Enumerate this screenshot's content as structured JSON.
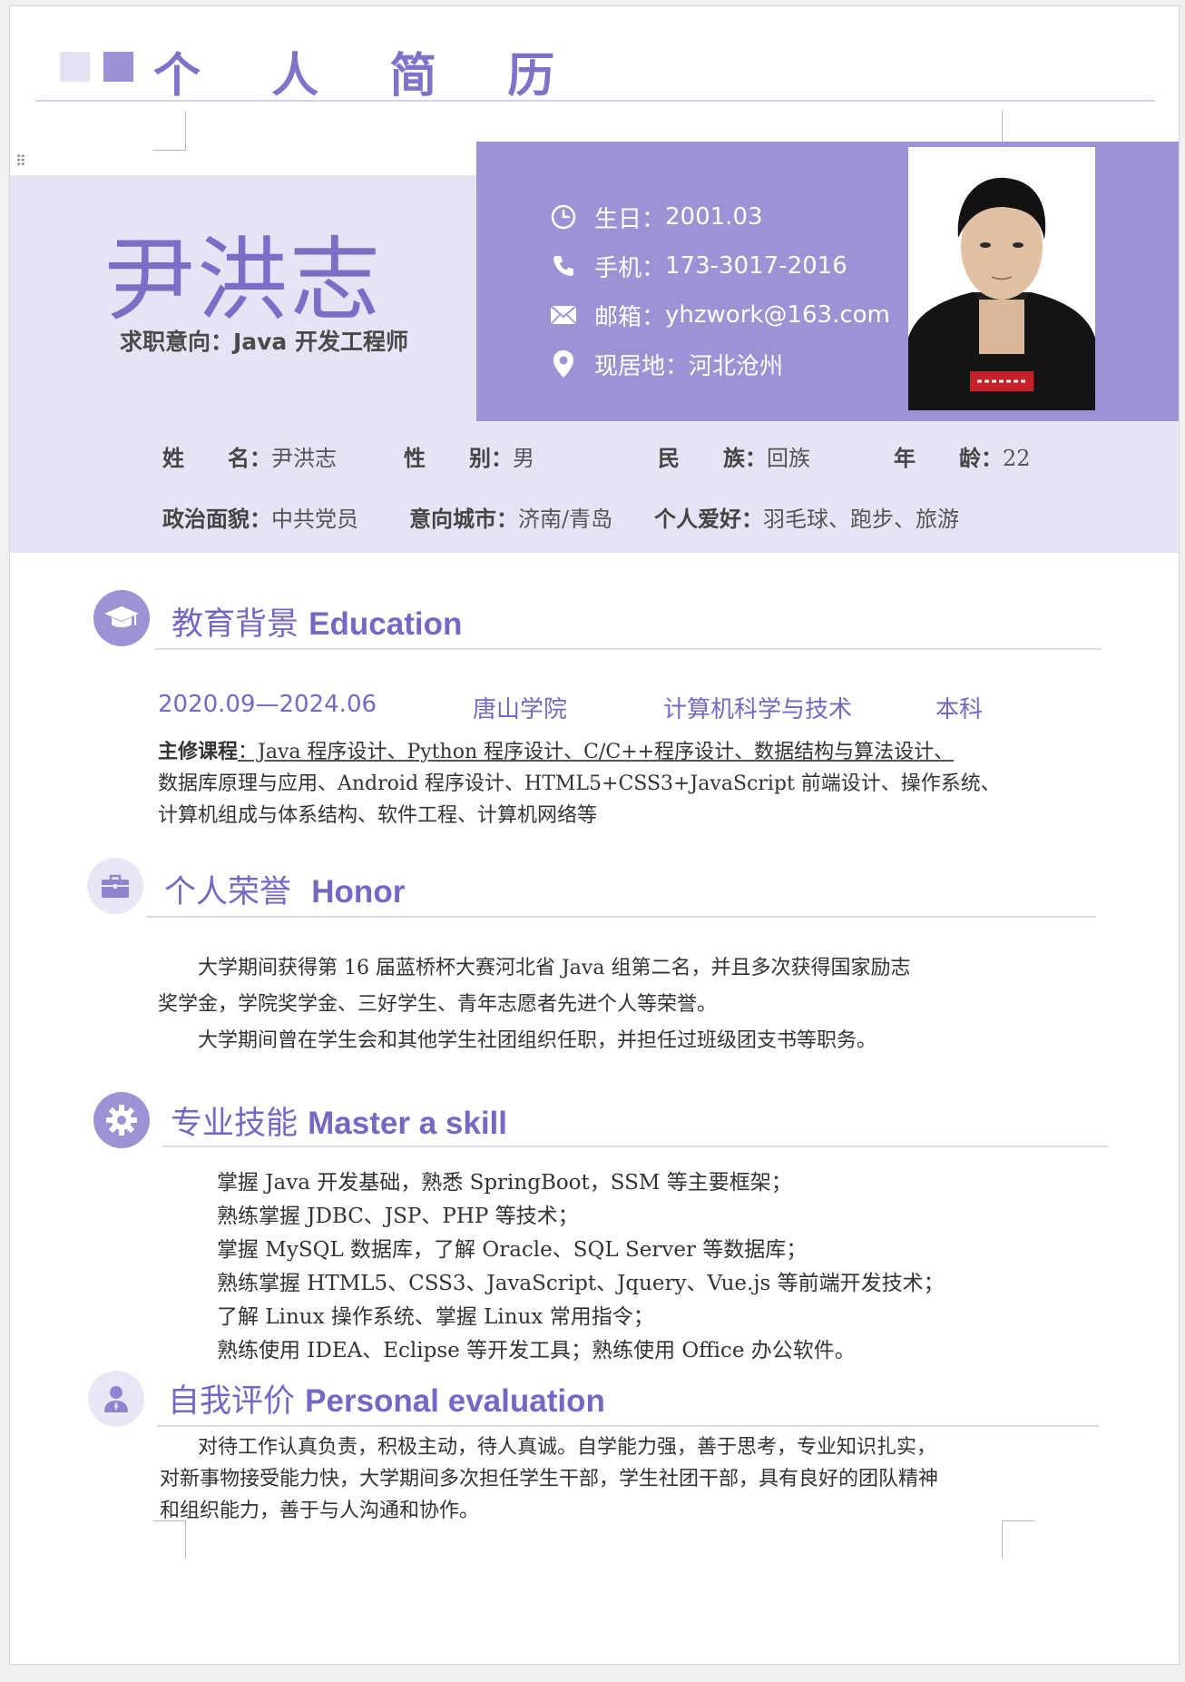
{
  "header": {
    "title": "个 人 简 历"
  },
  "profile": {
    "name": "尹洪志",
    "job_intent": "求职意向：Java 开发工程师"
  },
  "contact": [
    {
      "icon": "clock-icon",
      "label": "生日：",
      "value": "2001.03"
    },
    {
      "icon": "phone-icon",
      "label": "手机：",
      "value": "173-3017-2016"
    },
    {
      "icon": "mail-icon",
      "label": "邮箱：",
      "value": "yhzwork@163.com"
    },
    {
      "icon": "location-pin-icon",
      "label": "现居地：",
      "value": "河北沧州"
    }
  ],
  "basic_info": {
    "row1": [
      {
        "label": "姓　　名：",
        "value": "尹洪志"
      },
      {
        "label": "性　　别：",
        "value": "男"
      },
      {
        "label": "民　　族：",
        "value": "回族"
      },
      {
        "label": "年　　龄：",
        "value": "22"
      }
    ],
    "row2": [
      {
        "label": "政治面貌：",
        "value": "中共党员"
      },
      {
        "label": "意向城市：",
        "value": "济南/青岛"
      },
      {
        "label": "个人爱好：",
        "value": "羽毛球、跑步、旅游"
      }
    ]
  },
  "education": {
    "title_cn": "教育背景",
    "title_en": "Education",
    "period": "2020.09—2024.06",
    "school": "唐山学院",
    "major": "计算机科学与技术",
    "degree": "本科",
    "courses_label": "主修课程",
    "courses_line1": "：Java 程序设计、Python 程序设计、C/C++程序设计、数据结构与算法设计、",
    "courses_line2": "数据库原理与应用、Android 程序设计、HTML5+CSS3+JavaScript 前端设计、操作系统、",
    "courses_line3": "计算机组成与体系结构、软件工程、计算机网络等"
  },
  "honor": {
    "title_cn": "个人荣誉",
    "title_en": "Honor",
    "p1_line1": "大学期间获得第 16 届蓝桥杯大赛河北省 Java 组第二名，并且多次获得国家励志",
    "p1_line2": "奖学金，学院奖学金、三好学生、青年志愿者先进个人等荣誉。",
    "p2": "大学期间曾在学生会和其他学生社团组织任职，并担任过班级团支书等职务。"
  },
  "skills": {
    "title_cn": "专业技能",
    "title_en": "Master a skill",
    "items": [
      "掌握 Java 开发基础，熟悉 SpringBoot，SSM 等主要框架；",
      "熟练掌握 JDBC、JSP、PHP 等技术；",
      "掌握 MySQL 数据库，了解 Oracle、SQL Server 等数据库；",
      "熟练掌握 HTML5、CSS3、JavaScript、Jquery、Vue.js 等前端开发技术；",
      "了解 Linux 操作系统、掌握 Linux 常用指令；",
      "熟练使用 IDEA、Eclipse 等开发工具；熟练使用 Office 办公软件。"
    ]
  },
  "evaluation": {
    "title_cn": "自我评价",
    "title_en": "Personal evaluation",
    "line1": "对待工作认真负责，积极主动，待人真诚。自学能力强，善于思考，专业知识扎实，",
    "line2": "对新事物接受能力快，大学期间多次担任学生干部，学生社团干部，具有良好的团队精神",
    "line3": "和组织能力，善于与人沟通和协作。"
  },
  "colors": {
    "accent": "#7468c4",
    "band_dark": "#9d93d4",
    "band_light": "#e6e3f4"
  }
}
